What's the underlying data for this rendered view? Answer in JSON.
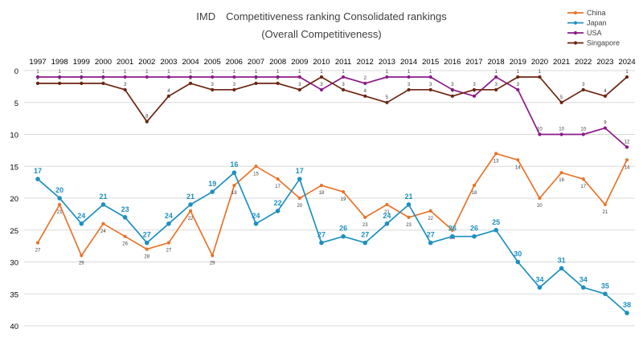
{
  "chart_data": {
    "type": "line",
    "title": "IMD　Competitiveness ranking Consolidated rankings",
    "subtitle": "(Overall Competitiveness)",
    "x": [
      "1997",
      "1998",
      "1999",
      "2000",
      "2001",
      "2002",
      "2003",
      "2004",
      "2005",
      "2006",
      "2007",
      "2008",
      "2009",
      "2010",
      "2011",
      "2012",
      "2013",
      "2014",
      "2015",
      "2016",
      "2017",
      "2018",
      "2019",
      "2020",
      "2021",
      "2022",
      "2023",
      "2024"
    ],
    "y_axis": {
      "range": [
        0,
        40
      ],
      "inverted": true,
      "ticks": [
        "0",
        "5",
        "10",
        "15",
        "20",
        "25",
        "30",
        "35",
        "40"
      ]
    },
    "xlabel": "",
    "ylabel": "",
    "grid": "horizontal",
    "legend_position": "top-right",
    "series": [
      {
        "name": "China",
        "color": "#E8742A",
        "label_color": "#404040",
        "label_size": "small",
        "label_position": "below",
        "values": [
          27,
          21,
          29,
          24,
          26,
          28,
          27,
          22,
          29,
          18,
          15,
          17,
          20,
          18,
          19,
          23,
          21,
          23,
          22,
          25,
          18,
          13,
          14,
          20,
          16,
          17,
          21,
          14
        ]
      },
      {
        "name": "Japan",
        "color": "#1E90C0",
        "label_color": "#1E90C0",
        "label_size": "large",
        "label_position": "above",
        "values": [
          17,
          20,
          24,
          21,
          23,
          27,
          24,
          21,
          19,
          16,
          24,
          22,
          17,
          27,
          26,
          27,
          24,
          21,
          27,
          26,
          26,
          25,
          30,
          34,
          31,
          34,
          35,
          38
        ]
      },
      {
        "name": "USA",
        "color": "#8B1A89",
        "label_color": "#404040",
        "label_size": "small",
        "label_position": "above",
        "values": [
          1,
          1,
          1,
          1,
          1,
          1,
          1,
          1,
          1,
          1,
          1,
          1,
          1,
          3,
          1,
          2,
          1,
          1,
          1,
          3,
          4,
          1,
          3,
          10,
          10,
          10,
          9,
          12
        ]
      },
      {
        "name": "Singapore",
        "color": "#6B2410",
        "label_color": "#404040",
        "label_size": "small",
        "label_position": "above",
        "values": [
          2,
          2,
          2,
          2,
          3,
          8,
          4,
          2,
          3,
          3,
          2,
          2,
          3,
          1,
          3,
          4,
          5,
          3,
          3,
          4,
          3,
          3,
          1,
          1,
          5,
          3,
          4,
          1
        ]
      }
    ]
  }
}
